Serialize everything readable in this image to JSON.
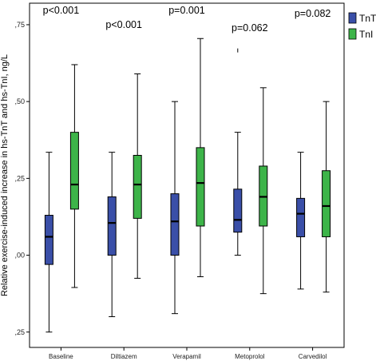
{
  "chart_data": {
    "type": "boxplot",
    "ylabel": "Relative exercise-induced increase in hs-TnT and hs-TnI, ng/L",
    "ylim": [
      -0.3,
      0.82
    ],
    "yticks": [
      -0.25,
      0.0,
      0.25,
      0.5,
      0.75
    ],
    "ytick_labels": [
      ",25",
      ",00",
      ",25",
      ",50",
      ",75"
    ],
    "categories": [
      "Baseline",
      "Diltiazem",
      "Verapamil",
      "Metoprolol",
      "Carvedilol"
    ],
    "p_values": [
      "p<0.001",
      "p<0.001",
      "p=0.001",
      "p=0.062",
      "p=0.082"
    ],
    "legend": {
      "position": "top-right"
    },
    "series": [
      {
        "name": "TnT",
        "color": "#3a4fa8",
        "boxes": [
          {
            "whisker_low": -0.25,
            "q1": -0.03,
            "median": 0.06,
            "q3": 0.13,
            "whisker_high": 0.335
          },
          {
            "whisker_low": -0.2,
            "q1": 0.0,
            "median": 0.105,
            "q3": 0.19,
            "whisker_high": 0.335
          },
          {
            "whisker_low": -0.19,
            "q1": 0.0,
            "median": 0.11,
            "q3": 0.2,
            "whisker_high": 0.5
          },
          {
            "whisker_low": 0.0,
            "q1": 0.075,
            "median": 0.115,
            "q3": 0.215,
            "whisker_high": 0.4,
            "outliers": [
              0.665
            ]
          },
          {
            "whisker_low": -0.11,
            "q1": 0.06,
            "median": 0.135,
            "q3": 0.185,
            "whisker_high": 0.335
          }
        ]
      },
      {
        "name": "TnI",
        "color": "#3db449",
        "boxes": [
          {
            "whisker_low": -0.105,
            "q1": 0.15,
            "median": 0.23,
            "q3": 0.4,
            "whisker_high": 0.62
          },
          {
            "whisker_low": -0.075,
            "q1": 0.12,
            "median": 0.23,
            "q3": 0.325,
            "whisker_high": 0.59
          },
          {
            "whisker_low": -0.07,
            "q1": 0.095,
            "median": 0.235,
            "q3": 0.35,
            "whisker_high": 0.705
          },
          {
            "whisker_low": -0.125,
            "q1": 0.095,
            "median": 0.19,
            "q3": 0.29,
            "whisker_high": 0.545
          },
          {
            "whisker_low": -0.12,
            "q1": 0.06,
            "median": 0.16,
            "q3": 0.275,
            "whisker_high": 0.5
          }
        ]
      }
    ]
  }
}
